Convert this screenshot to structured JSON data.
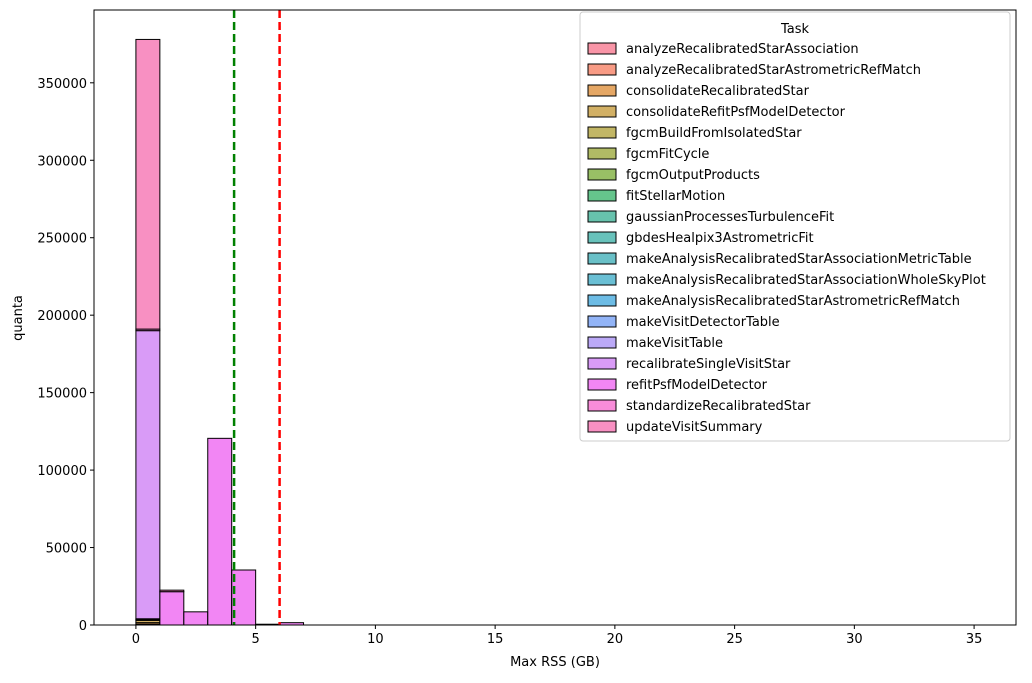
{
  "chart_data": {
    "type": "histogram",
    "xlabel": "Max RSS (GB)",
    "ylabel": "quanta",
    "legend_title": "Task",
    "legend_loc": "upper right",
    "xlim": [
      -1.75,
      36.75
    ],
    "ylim": [
      0,
      397000
    ],
    "xticks": [
      0,
      5,
      10,
      15,
      20,
      25,
      30,
      35
    ],
    "yticks": [
      0,
      50000,
      100000,
      150000,
      200000,
      250000,
      300000,
      350000
    ],
    "bins": [
      0,
      1,
      2,
      3,
      4,
      5,
      6,
      7,
      8,
      9,
      10,
      11,
      12,
      13,
      14,
      15,
      16,
      17,
      18,
      19,
      20,
      21,
      22,
      23,
      24,
      25,
      26,
      27,
      28,
      29,
      30,
      31,
      32,
      33,
      34,
      35
    ],
    "vlines": [
      {
        "value": 4.1,
        "color": "#008000"
      },
      {
        "value": 6,
        "color": "#ff0000"
      }
    ],
    "series": [
      {
        "name": "analyzeRecalibratedStarAssociation",
        "color": "#f77189",
        "values": [
          500,
          0,
          0,
          0,
          0,
          0,
          0,
          0,
          0,
          0,
          0,
          0,
          0,
          0,
          0,
          0,
          0,
          0,
          0,
          0,
          0,
          0,
          0,
          0,
          0,
          0,
          0,
          0,
          0,
          0,
          0,
          0,
          0,
          0,
          0
        ]
      },
      {
        "name": "analyzeRecalibratedStarAstrometricRefMatch",
        "color": "#f67a5c",
        "values": [
          0,
          0,
          0,
          0,
          0,
          0,
          0,
          0,
          0,
          0,
          0,
          0,
          0,
          0,
          0,
          0,
          0,
          0,
          0,
          0,
          0,
          0,
          0,
          0,
          0,
          0,
          0,
          0,
          0,
          0,
          0,
          0,
          0,
          0,
          0
        ]
      },
      {
        "name": "consolidateRecalibratedStar",
        "color": "#dc8932",
        "values": [
          1000,
          0,
          0,
          0,
          0,
          0,
          0,
          0,
          0,
          0,
          0,
          0,
          0,
          0,
          0,
          0,
          0,
          0,
          0,
          0,
          0,
          0,
          0,
          0,
          0,
          0,
          0,
          0,
          0,
          0,
          0,
          0,
          0,
          0,
          0
        ]
      },
      {
        "name": "consolidateRefitPsfModelDetector",
        "color": "#c39532",
        "values": [
          1500,
          0,
          0,
          0,
          0,
          0,
          0,
          0,
          0,
          0,
          0,
          0,
          0,
          0,
          0,
          0,
          0,
          0,
          0,
          0,
          0,
          0,
          0,
          0,
          0,
          0,
          0,
          0,
          0,
          0,
          0,
          0,
          0,
          0,
          0
        ]
      },
      {
        "name": "fgcmBuildFromIsolatedStar",
        "color": "#ae9d31",
        "values": [
          0,
          0,
          0,
          0,
          0,
          0,
          0,
          0,
          0,
          0,
          0,
          0,
          0,
          0,
          0,
          0,
          0,
          0,
          0,
          0,
          0,
          0,
          0,
          0,
          0,
          0,
          0,
          0,
          0,
          0,
          0,
          0,
          0,
          0,
          0
        ]
      },
      {
        "name": "fgcmFitCycle",
        "color": "#97a431",
        "values": [
          0,
          0,
          0,
          0,
          0,
          0,
          0,
          0,
          0,
          0,
          0,
          0,
          0,
          0,
          0,
          0,
          0,
          0,
          0,
          0,
          0,
          0,
          0,
          0,
          0,
          0,
          0,
          0,
          0,
          0,
          0,
          0,
          0,
          0,
          0
        ]
      },
      {
        "name": "fgcmOutputProducts",
        "color": "#77ab31",
        "values": [
          0,
          0,
          0,
          0,
          0,
          0,
          0,
          0,
          0,
          0,
          0,
          0,
          0,
          0,
          0,
          0,
          0,
          0,
          0,
          0,
          0,
          0,
          0,
          0,
          0,
          0,
          0,
          0,
          0,
          0,
          0,
          0,
          0,
          0,
          0
        ]
      },
      {
        "name": "fitStellarMotion",
        "color": "#32b166",
        "values": [
          0,
          0,
          0,
          0,
          0,
          0,
          0,
          0,
          0,
          0,
          0,
          0,
          0,
          0,
          0,
          0,
          0,
          0,
          0,
          0,
          0,
          0,
          0,
          0,
          0,
          0,
          0,
          0,
          0,
          0,
          0,
          0,
          0,
          0,
          0
        ]
      },
      {
        "name": "gaussianProcessesTurbulenceFit",
        "color": "#34ae91",
        "values": [
          0,
          0,
          0,
          0,
          0,
          0,
          0,
          0,
          0,
          0,
          0,
          0,
          0,
          0,
          0,
          0,
          0,
          0,
          0,
          0,
          0,
          0,
          0,
          0,
          0,
          0,
          0,
          0,
          0,
          0,
          0,
          0,
          0,
          0,
          0
        ]
      },
      {
        "name": "gbdesHealpix3AstrometricFit",
        "color": "#36ada4",
        "values": [
          0,
          0,
          0,
          0,
          0,
          0,
          0,
          0,
          0,
          0,
          0,
          0,
          0,
          0,
          0,
          0,
          0,
          0,
          0,
          0,
          0,
          0,
          0,
          0,
          0,
          0,
          0,
          0,
          0,
          0,
          0,
          0,
          0,
          0,
          0
        ]
      },
      {
        "name": "makeAnalysisRecalibratedStarAssociationMetricTable",
        "color": "#37abb4",
        "values": [
          0,
          0,
          0,
          0,
          0,
          0,
          0,
          0,
          0,
          0,
          0,
          0,
          0,
          0,
          0,
          0,
          0,
          0,
          0,
          0,
          0,
          0,
          0,
          0,
          0,
          0,
          0,
          0,
          0,
          0,
          0,
          0,
          0,
          0,
          0
        ]
      },
      {
        "name": "makeAnalysisRecalibratedStarAssociationWholeSkyPlot",
        "color": "#38a9c5",
        "values": [
          0,
          0,
          0,
          0,
          0,
          0,
          0,
          0,
          0,
          0,
          0,
          0,
          0,
          0,
          0,
          0,
          0,
          0,
          0,
          0,
          0,
          0,
          0,
          0,
          0,
          0,
          0,
          0,
          0,
          0,
          0,
          0,
          0,
          0,
          0
        ]
      },
      {
        "name": "makeAnalysisRecalibratedStarAstrometricRefMatch",
        "color": "#3ca6dc",
        "values": [
          0,
          0,
          0,
          0,
          0,
          0,
          0,
          0,
          0,
          0,
          0,
          0,
          0,
          0,
          0,
          0,
          0,
          0,
          0,
          0,
          0,
          0,
          0,
          0,
          0,
          0,
          0,
          0,
          0,
          0,
          0,
          0,
          0,
          0,
          0
        ]
      },
      {
        "name": "makeVisitDetectorTable",
        "color": "#6e9bf4",
        "values": [
          500,
          0,
          0,
          0,
          0,
          0,
          0,
          0,
          0,
          0,
          0,
          0,
          0,
          0,
          0,
          0,
          0,
          0,
          0,
          0,
          0,
          0,
          0,
          0,
          0,
          0,
          0,
          0,
          0,
          0,
          0,
          0,
          0,
          0,
          0
        ]
      },
      {
        "name": "makeVisitTable",
        "color": "#a48cf4",
        "values": [
          500,
          0,
          0,
          0,
          0,
          0,
          0,
          0,
          0,
          0,
          0,
          0,
          0,
          0,
          0,
          0,
          0,
          0,
          0,
          0,
          0,
          0,
          0,
          0,
          0,
          0,
          0,
          0,
          0,
          0,
          0,
          0,
          0,
          0,
          0
        ]
      },
      {
        "name": "recalibrateSingleVisitStar",
        "color": "#cc7af4",
        "values": [
          186000,
          0,
          0,
          0,
          0,
          0,
          0,
          0,
          0,
          0,
          0,
          0,
          0,
          0,
          0,
          0,
          0,
          0,
          0,
          0,
          0,
          0,
          0,
          0,
          0,
          0,
          0,
          0,
          0,
          0,
          0,
          0,
          0,
          0,
          0
        ]
      },
      {
        "name": "refitPsfModelDetector",
        "color": "#ee5ef0",
        "values": [
          0,
          21500,
          8500,
          120500,
          35500,
          500,
          1500,
          0,
          0,
          0,
          0,
          0,
          0,
          0,
          0,
          0,
          0,
          0,
          0,
          0,
          0,
          0,
          0,
          0,
          0,
          0,
          0,
          0,
          0,
          0,
          0,
          0,
          0,
          0,
          0
        ]
      },
      {
        "name": "standardizeRecalibratedStar",
        "color": "#f565cc",
        "values": [
          1000,
          0,
          0,
          0,
          0,
          0,
          0,
          0,
          0,
          0,
          0,
          0,
          0,
          0,
          0,
          0,
          0,
          0,
          0,
          0,
          0,
          0,
          0,
          0,
          0,
          0,
          0,
          0,
          0,
          0,
          0,
          0,
          0,
          0,
          0
        ]
      },
      {
        "name": "updateVisitSummary",
        "color": "#f66bad",
        "values": [
          187000,
          1000,
          0,
          0,
          0,
          0,
          0,
          0,
          0,
          0,
          0,
          0,
          0,
          0,
          0,
          0,
          0,
          0,
          0,
          0,
          0,
          0,
          0,
          0,
          0,
          0,
          0,
          0,
          0,
          0,
          0,
          0,
          0,
          0,
          0
        ]
      }
    ]
  }
}
